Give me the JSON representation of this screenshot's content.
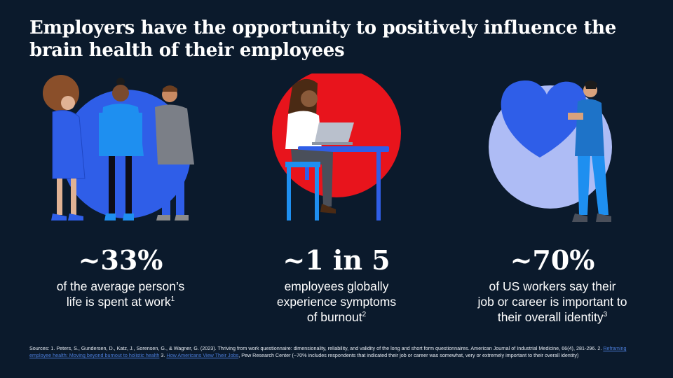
{
  "title": "Employers have the opportunity to positively influence the brain health of their employees",
  "stats": [
    {
      "value": "~33%",
      "line1": "of the average person’s",
      "line2": "life is spent at work",
      "sup": "1"
    },
    {
      "value": "~1 in 5",
      "line1": "employees globally",
      "line2": "experience symptoms",
      "line3": "of burnout",
      "sup": "2"
    },
    {
      "value": "~70%",
      "line1": "of US workers say their",
      "line2": "job or career is important to",
      "line3": "their overall identity",
      "sup": "3"
    }
  ],
  "sources": {
    "text1": "Sources: 1. Peters, S., Gundersen, D., Katz, J., Sorensen, G., & Wagner, G. (2023). Thriving from work questionnaire: dimensionality, reliability, and validity of the long and short form questionnaires. American Journal of Industrial Medicine, 66(4), 281-296. 2. ",
    "link1": "Reframing employee health: Moving beyond burnout to holistic health",
    "text2": " 3.  ",
    "link2": "How Americans View Their Jobs",
    "text3": ", Pew Research Center (~70% includes respondents that indicated their job or career was somewhat, very or extremely important to their overall identity)"
  },
  "colors": {
    "background": "#0b1a2c",
    "circle_blue": "#2f5ee8",
    "circle_red": "#e8141c",
    "circle_light": "#aebcf5",
    "heart": "#2f5ee8",
    "link": "#4a7bd6"
  },
  "icons": [
    "coworkers-illustration",
    "burnout-laptop-illustration",
    "heart-identity-illustration"
  ]
}
